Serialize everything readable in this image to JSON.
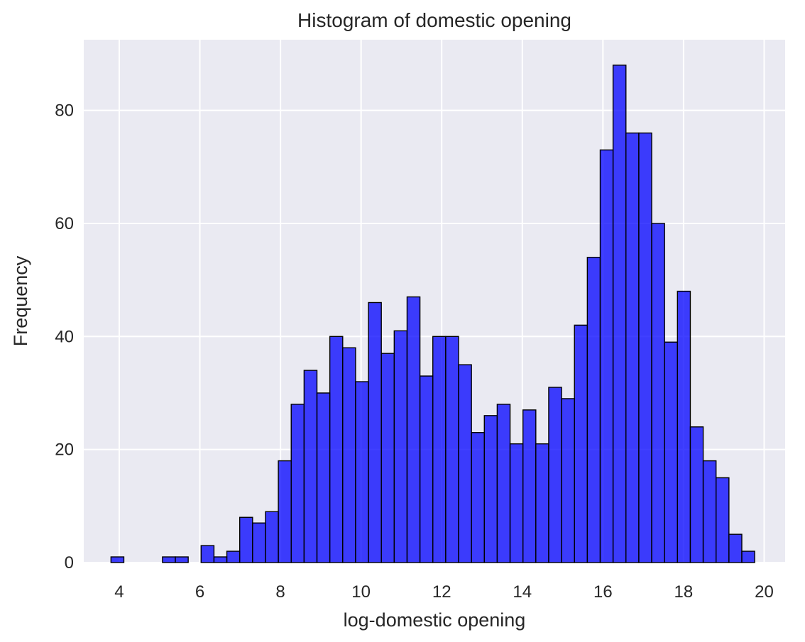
{
  "chart_data": {
    "type": "bar",
    "subtype": "histogram",
    "title": "Histogram of domestic opening",
    "xlabel": "log-domestic opening",
    "ylabel": "Frequency",
    "xlim": [
      3.12,
      20.52
    ],
    "ylim": [
      0,
      92.5
    ],
    "xticks": [
      4,
      6,
      8,
      10,
      12,
      14,
      16,
      18,
      20
    ],
    "yticks": [
      0,
      20,
      40,
      60,
      80
    ],
    "grid": true,
    "legend": "none",
    "colors": {
      "background": "#eaeaf2",
      "grid": "#ffffff",
      "bar_fill": "#0000ff",
      "bar_edge": "#000000"
    },
    "bin_start": 3.795,
    "bin_width": 0.3194,
    "values": [
      1,
      0,
      0,
      0,
      1,
      1,
      0,
      3,
      1,
      2,
      8,
      7,
      9,
      18,
      28,
      34,
      30,
      40,
      38,
      32,
      46,
      37,
      41,
      47,
      33,
      40,
      40,
      35,
      23,
      26,
      28,
      21,
      27,
      21,
      31,
      29,
      42,
      54,
      73,
      88,
      76,
      76,
      60,
      39,
      48,
      24,
      18,
      15,
      5,
      2
    ]
  }
}
